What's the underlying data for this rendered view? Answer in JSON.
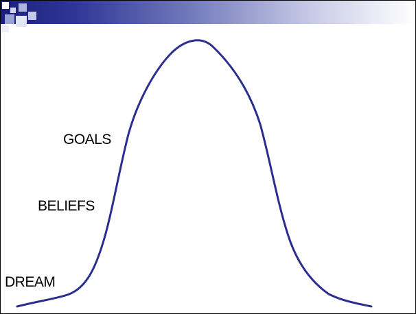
{
  "diagram": {
    "labels": {
      "goals": "GOALS",
      "beliefs": "BELIEFS",
      "dream": "DREAM"
    },
    "colors": {
      "curve": "#2b2e8f",
      "header_dark": "#1b1f7a",
      "header_light": "#ffffff"
    },
    "icons": [
      "corner-squares-decoration"
    ]
  }
}
